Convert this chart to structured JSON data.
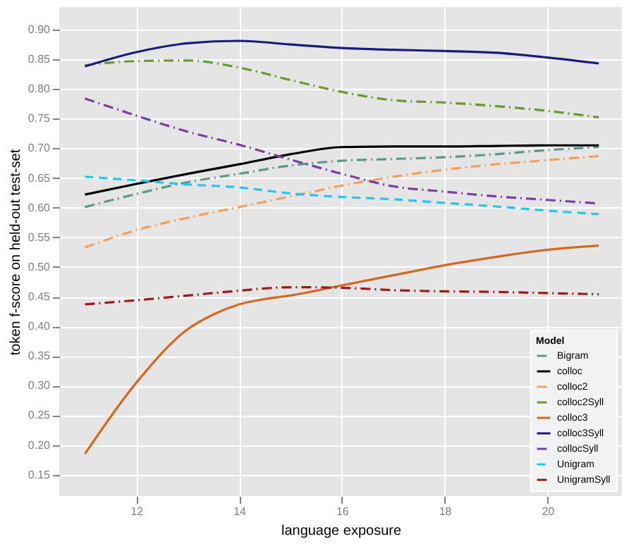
{
  "chart_data": {
    "type": "line",
    "xlabel": "language exposure",
    "ylabel": "token f-score on held-out test-set",
    "legend_title": "Model",
    "legend": "bottom right",
    "grid": true,
    "x": [
      11,
      12,
      13,
      14,
      15,
      16,
      17,
      18,
      19,
      20,
      21
    ],
    "xlim": [
      10.5,
      21.45
    ],
    "xticks": [
      12,
      14,
      16,
      18,
      20
    ],
    "ylim": [
      0.114,
      0.938
    ],
    "yticks": [
      0.15,
      {
        "value": 0.2,
        "label": "0.20"
      },
      {
        "value": 0.25,
        "label": "0.25"
      },
      {
        "value": 0.3,
        "label": "0.30"
      },
      0.35,
      {
        "value": 0.4,
        "label": "0.40"
      },
      0.45,
      {
        "value": 0.5,
        "label": "0.50"
      },
      0.55,
      {
        "value": 0.6,
        "label": "0.60"
      },
      0.65,
      {
        "value": 0.7,
        "label": "0.70"
      },
      0.75,
      {
        "value": 0.8,
        "label": "0.80"
      },
      0.85,
      {
        "value": 0.9,
        "label": "0.90"
      }
    ],
    "series": [
      {
        "name": "Bigram",
        "color": "#5b9a8b",
        "line_style": "dashdot",
        "values": [
          0.601,
          0.623,
          0.643,
          0.657,
          0.671,
          0.679,
          0.682,
          0.685,
          0.69,
          0.697,
          0.702
        ]
      },
      {
        "name": "colloc",
        "color": "#000000",
        "line_style": "solid",
        "values": [
          0.622,
          0.64,
          0.657,
          0.673,
          0.69,
          0.702,
          0.703,
          0.703,
          0.704,
          0.705,
          0.705
        ]
      },
      {
        "name": "colloc2",
        "color": "#f5a05a",
        "line_style": "dashdot",
        "values": [
          0.533,
          0.562,
          0.583,
          0.601,
          0.619,
          0.637,
          0.652,
          0.664,
          0.673,
          0.68,
          0.687
        ]
      },
      {
        "name": "colloc2Syll",
        "color": "#6a9a2a",
        "line_style": "dashdot",
        "values": [
          0.84,
          0.847,
          0.848,
          0.836,
          0.815,
          0.795,
          0.781,
          0.777,
          0.771,
          0.763,
          0.752
        ]
      },
      {
        "name": "colloc3",
        "color": "#d2691e",
        "line_style": "solid",
        "x": [
          11,
          12,
          13,
          13.5,
          14,
          14.5,
          15,
          16,
          17,
          18,
          19,
          20,
          21
        ],
        "values": [
          0.185,
          0.305,
          0.395,
          0.42,
          0.437,
          0.446,
          0.452,
          0.469,
          0.486,
          0.503,
          0.517,
          0.529,
          0.536
        ]
      },
      {
        "name": "colloc3Syll",
        "color": "#1a1a80",
        "line_style": "solid",
        "values": [
          0.838,
          0.862,
          0.877,
          0.881,
          0.875,
          0.869,
          0.866,
          0.864,
          0.861,
          0.853,
          0.843
        ]
      },
      {
        "name": "collocSyll",
        "color": "#7b3f9e",
        "line_style": "dashdot",
        "values": [
          0.784,
          0.755,
          0.728,
          0.706,
          0.681,
          0.657,
          0.636,
          0.627,
          0.619,
          0.613,
          0.607
        ]
      },
      {
        "name": "Unigram",
        "color": "#1ec8f0",
        "line_style": "dashed",
        "values": [
          0.652,
          0.646,
          0.639,
          0.634,
          0.624,
          0.618,
          0.614,
          0.608,
          0.602,
          0.595,
          0.589
        ]
      },
      {
        "name": "UnigramSyll",
        "color": "#a01a1a",
        "line_style": "dashdot",
        "values": [
          0.437,
          0.444,
          0.452,
          0.46,
          0.466,
          0.465,
          0.461,
          0.459,
          0.458,
          0.456,
          0.454
        ]
      }
    ]
  }
}
